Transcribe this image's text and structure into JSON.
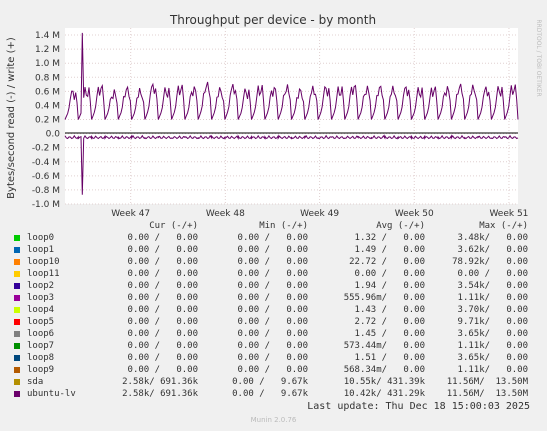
{
  "chart_data": {
    "type": "line",
    "title": "Throughput per device - by month",
    "ylabel": "Bytes/second read (-) / write (+)",
    "side_label": "RRDTOOL / TOBI OETIKER",
    "ylim": [
      -1.0,
      1.5
    ],
    "y_ticks": [
      {
        "v": 1.4,
        "label": "1.4 M"
      },
      {
        "v": 1.2,
        "label": "1.2 M"
      },
      {
        "v": 1.0,
        "label": "1.0 M"
      },
      {
        "v": 0.8,
        "label": "0.8 M"
      },
      {
        "v": 0.6,
        "label": "0.6 M"
      },
      {
        "v": 0.4,
        "label": "0.4 M"
      },
      {
        "v": 0.2,
        "label": "0.2 M"
      },
      {
        "v": 0.0,
        "label": "0.0"
      },
      {
        "v": -0.2,
        "label": "-0.2 M"
      },
      {
        "v": -0.4,
        "label": "-0.4 M"
      },
      {
        "v": -0.6,
        "label": "-0.6 M"
      },
      {
        "v": -0.8,
        "label": "-0.8 M"
      },
      {
        "v": -1.0,
        "label": "-1.0 M"
      }
    ],
    "x_ticks": [
      {
        "pos": 0.145,
        "label": "Week 47"
      },
      {
        "pos": 0.354,
        "label": "Week 48"
      },
      {
        "pos": 0.562,
        "label": "Week 49"
      },
      {
        "pos": 0.771,
        "label": "Week 50"
      },
      {
        "pos": 0.98,
        "label": "Week 51"
      }
    ],
    "series_color": "#660066",
    "write_days": [
      0.56,
      0.58,
      0.62,
      0.55,
      0.6,
      0.57,
      0.64,
      0.58,
      0.62,
      0.6,
      0.66,
      0.59,
      0.63,
      0.57,
      0.61,
      0.6,
      0.62,
      0.58,
      0.6,
      0.61,
      0.59,
      0.63,
      0.6,
      0.62,
      0.6,
      0.61,
      0.58,
      0.6,
      0.6,
      0.64,
      0.62,
      0.6,
      0.6,
      0.62
    ],
    "write_spike": 1.43,
    "read_spike": -0.87
  },
  "legend": {
    "headers": {
      "cur": "Cur (-/+)",
      "min": "Min (-/+)",
      "avg": "Avg (-/+)",
      "max": "Max (-/+)"
    },
    "rows": [
      {
        "name": "loop0",
        "color": "#00cc00",
        "cur": "0.00 /   0.00",
        "min": "0.00 /   0.00",
        "avg": "1.32 /   0.00",
        "max": "3.48k/   0.00"
      },
      {
        "name": "loop1",
        "color": "#0066b3",
        "cur": "0.00 /   0.00",
        "min": "0.00 /   0.00",
        "avg": "1.49 /   0.00",
        "max": "3.62k/   0.00"
      },
      {
        "name": "loop10",
        "color": "#ff8000",
        "cur": "0.00 /   0.00",
        "min": "0.00 /   0.00",
        "avg": "22.72 /   0.00",
        "max": "78.92k/   0.00"
      },
      {
        "name": "loop11",
        "color": "#ffcc00",
        "cur": "0.00 /   0.00",
        "min": "0.00 /   0.00",
        "avg": "0.00 /   0.00",
        "max": "0.00 /   0.00"
      },
      {
        "name": "loop2",
        "color": "#330099",
        "cur": "0.00 /   0.00",
        "min": "0.00 /   0.00",
        "avg": "1.94 /   0.00",
        "max": "3.54k/   0.00"
      },
      {
        "name": "loop3",
        "color": "#990099",
        "cur": "0.00 /   0.00",
        "min": "0.00 /   0.00",
        "avg": "555.96m/   0.00",
        "max": "1.11k/   0.00"
      },
      {
        "name": "loop4",
        "color": "#ccff00",
        "cur": "0.00 /   0.00",
        "min": "0.00 /   0.00",
        "avg": "1.43 /   0.00",
        "max": "3.70k/   0.00"
      },
      {
        "name": "loop5",
        "color": "#ff0000",
        "cur": "0.00 /   0.00",
        "min": "0.00 /   0.00",
        "avg": "2.72 /   0.00",
        "max": "9.71k/   0.00"
      },
      {
        "name": "loop6",
        "color": "#808080",
        "cur": "0.00 /   0.00",
        "min": "0.00 /   0.00",
        "avg": "1.45 /   0.00",
        "max": "3.65k/   0.00"
      },
      {
        "name": "loop7",
        "color": "#008f00",
        "cur": "0.00 /   0.00",
        "min": "0.00 /   0.00",
        "avg": "573.44m/   0.00",
        "max": "1.11k/   0.00"
      },
      {
        "name": "loop8",
        "color": "#00487d",
        "cur": "0.00 /   0.00",
        "min": "0.00 /   0.00",
        "avg": "1.51 /   0.00",
        "max": "3.65k/   0.00"
      },
      {
        "name": "loop9",
        "color": "#b35a00",
        "cur": "0.00 /   0.00",
        "min": "0.00 /   0.00",
        "avg": "568.34m/   0.00",
        "max": "1.11k/   0.00"
      },
      {
        "name": "sda",
        "color": "#b38f00",
        "cur": "2.58k/ 691.36k",
        "min": "0.00 /   9.67k",
        "avg": "10.55k/ 431.39k",
        "max": "11.56M/  13.50M"
      },
      {
        "name": "ubuntu-lv",
        "color": "#6b006b",
        "cur": "2.58k/ 691.36k",
        "min": "0.00 /   9.67k",
        "avg": "10.42k/ 431.29k",
        "max": "11.56M/  13.50M"
      }
    ]
  },
  "footer": {
    "last_update": "Last update: Thu Dec 18 15:00:03 2025",
    "brand": "Munin 2.0.76"
  }
}
